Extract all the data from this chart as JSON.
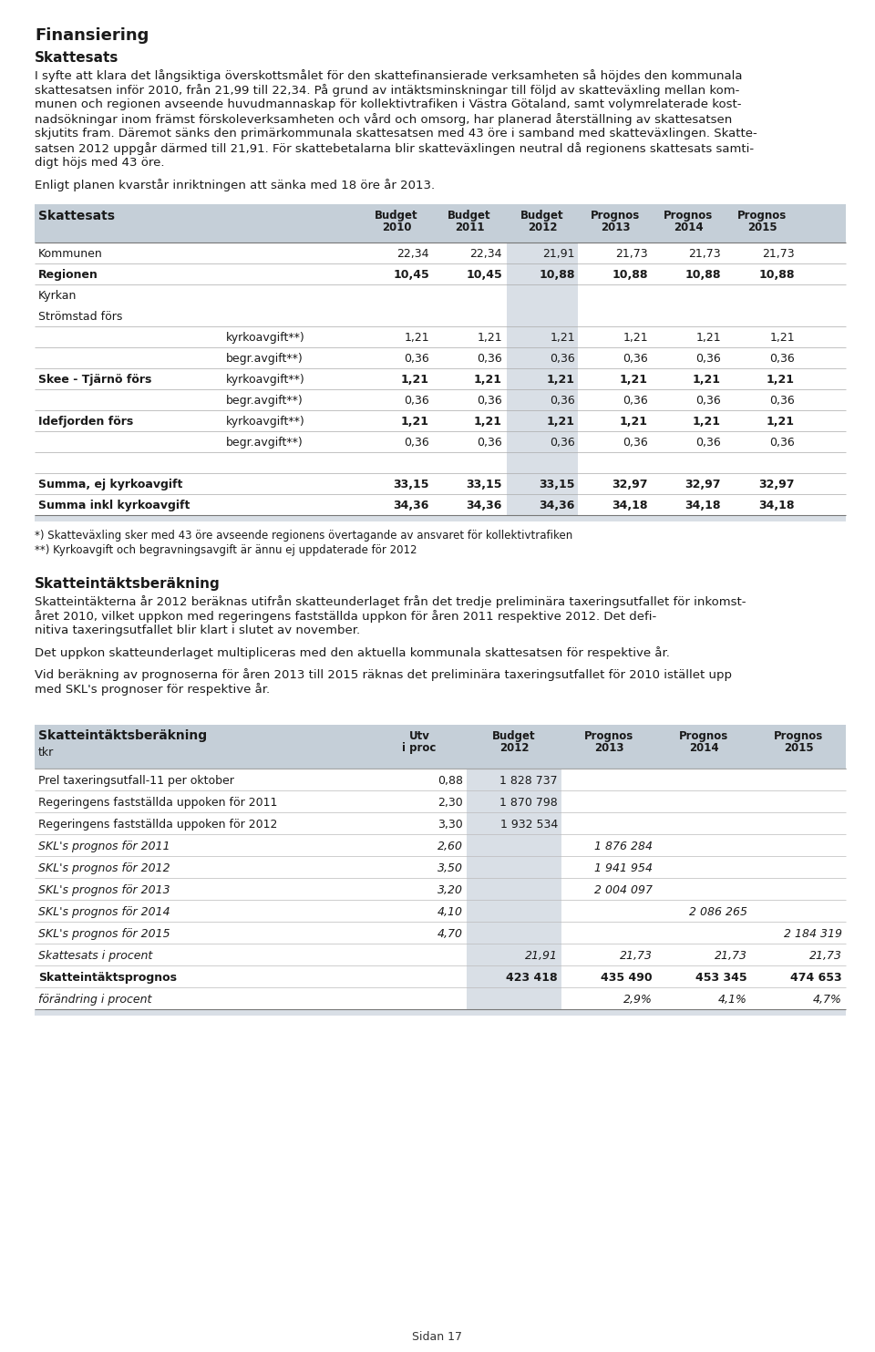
{
  "title1": "Finansiering",
  "section1_title": "Skattesats",
  "body1_lines": [
    "I syfte att klara det långsiktiga överskottsmålet för den skattefinansierade verksamheten så höjdes den kommunala",
    "skattesatsen inför 2010, från 21,99 till 22,34. På grund av intäktsminskningar till följd av skatteväxling mellan kom-",
    "munen och regionen avseende huvudmannaskap för kollektivtrafiken i Västra Götaland, samt volymrelaterade kost-",
    "nadsökningar inom främst förskoleverksamheten och vård och omsorg, har planerad återställning av skattesatsen",
    "skjutits fram. Däremot sänks den primärkommunala skattesatsen med 43 öre i samband med skatteväxlingen. Skatte-",
    "satsen 2012 uppgår därmed till 21,91. För skattebetalarna blir skatteväxlingen neutral då regionens skattesats samti-",
    "digt höjs med 43 öre."
  ],
  "body1_extra": "Enligt planen kvarstår inriktningen att sänka med 18 öre år 2013.",
  "table1_header_bg": "#c5cfd8",
  "table1_highlight_bg": "#d9dfe6",
  "table1_line_color": "#aaaaaa",
  "table1_title": "Skattesats",
  "table1_cols": [
    "Budget\n2010",
    "Budget\n2011",
    "Budget\n2012",
    "Prognos\n2013",
    "Prognos\n2014",
    "Prognos\n2015"
  ],
  "table1_rows": [
    {
      "label1": "Kommunen",
      "label2": "",
      "bold1": false,
      "bold2": false,
      "line": false,
      "values": [
        "22,34",
        "22,34",
        "21,91",
        "21,73",
        "21,73",
        "21,73"
      ],
      "bval": false
    },
    {
      "label1": "Regionen",
      "label2": "",
      "bold1": true,
      "bold2": false,
      "line": true,
      "values": [
        "10,45",
        "10,45",
        "10,88",
        "10,88",
        "10,88",
        "10,88"
      ],
      "bval": true
    },
    {
      "label1": "Kyrkan",
      "label2": "",
      "bold1": false,
      "bold2": false,
      "line": true,
      "values": [
        "",
        "",
        "",
        "",
        "",
        ""
      ],
      "bval": false
    },
    {
      "label1": "Strömstad förs",
      "label2": "",
      "bold1": false,
      "bold2": false,
      "line": false,
      "values": [
        "",
        "",
        "",
        "",
        "",
        ""
      ],
      "bval": false
    },
    {
      "label1": "",
      "label2": "kyrkoavgift**)",
      "bold1": false,
      "bold2": false,
      "line": true,
      "values": [
        "1,21",
        "1,21",
        "1,21",
        "1,21",
        "1,21",
        "1,21"
      ],
      "bval": false
    },
    {
      "label1": "",
      "label2": "begr.avgift**)",
      "bold1": false,
      "bold2": false,
      "line": true,
      "values": [
        "0,36",
        "0,36",
        "0,36",
        "0,36",
        "0,36",
        "0,36"
      ],
      "bval": false
    },
    {
      "label1": "Skee - Tjärnö förs",
      "label2": "kyrkoavgift**)",
      "bold1": true,
      "bold2": false,
      "line": true,
      "values": [
        "1,21",
        "1,21",
        "1,21",
        "1,21",
        "1,21",
        "1,21"
      ],
      "bval": true
    },
    {
      "label1": "",
      "label2": "begr.avgift**)",
      "bold1": false,
      "bold2": false,
      "line": true,
      "values": [
        "0,36",
        "0,36",
        "0,36",
        "0,36",
        "0,36",
        "0,36"
      ],
      "bval": false
    },
    {
      "label1": "Idefjorden förs",
      "label2": "kyrkoavgift**)",
      "bold1": true,
      "bold2": false,
      "line": true,
      "values": [
        "1,21",
        "1,21",
        "1,21",
        "1,21",
        "1,21",
        "1,21"
      ],
      "bval": true
    },
    {
      "label1": "",
      "label2": "begr.avgift**)",
      "bold1": false,
      "bold2": false,
      "line": true,
      "values": [
        "0,36",
        "0,36",
        "0,36",
        "0,36",
        "0,36",
        "0,36"
      ],
      "bval": false
    },
    {
      "label1": "",
      "label2": "",
      "bold1": false,
      "bold2": false,
      "line": true,
      "values": [
        "",
        "",
        "",
        "",
        "",
        ""
      ],
      "bval": false
    },
    {
      "label1": "Summa, ej kyrkoavgift",
      "label2": "",
      "bold1": true,
      "bold2": false,
      "line": true,
      "values": [
        "33,15",
        "33,15",
        "33,15",
        "32,97",
        "32,97",
        "32,97"
      ],
      "bval": true
    },
    {
      "label1": "Summa inkl kyrkoavgift",
      "label2": "",
      "bold1": true,
      "bold2": false,
      "line": true,
      "values": [
        "34,36",
        "34,36",
        "34,36",
        "34,18",
        "34,18",
        "34,18"
      ],
      "bval": true
    }
  ],
  "table1_footnote1": "*) Skatteväxling sker med 43 öre avseende regionens övertagande av ansvaret för kollektivtrafiken",
  "table1_footnote2": "**) Kyrkoavgift och begravningsavgift är ännu ej uppdaterade för 2012",
  "section2_title": "Skatteintäktsberäkning",
  "body2_lines": [
    "Skatteintäkterna år 2012 beräknas utifrån skatteunderlaget från det tredje preliminära taxeringsutfallet för inkomst-",
    "året 2010, vilket uppoken med regeringens fastställda uppoken för åren 2011 respektive 2012. Det defi-",
    "nitiva taxeringsutfallet blir klart i slutet av november."
  ],
  "body2_line2": "Det uppoken skatteunderlaget multipliceras med den aktuella kommunala skattesatsen för respektive år.",
  "body2_lines3": [
    "Vid beräkning av prognoserna för åren 2013 till 2015 räknas det preliminära taxeringsutfallet för 2010 istället upp",
    "med SKL's prognoser för respektive år."
  ],
  "table2_header_bg": "#c5cfd8",
  "table2_highlight_bg": "#d9dfe6",
  "table2_title1": "Skatteintäktsberäkning",
  "table2_title2": "tkr",
  "table2_cols": [
    "Utv\ni proc",
    "Budget\n2012",
    "Prognos\n2013",
    "Prognos\n2014",
    "Prognos\n2015"
  ],
  "table2_rows": [
    {
      "label": "Prel taxeringsutfall-11 per oktober",
      "values": [
        "0,88",
        "1 828 737",
        "",
        "",
        ""
      ],
      "italic": false,
      "bold": false
    },
    {
      "label": "Regeringens fastställda uppoken för 2011",
      "values": [
        "2,30",
        "1 870 798",
        "",
        "",
        ""
      ],
      "italic": false,
      "bold": false
    },
    {
      "label": "Regeringens fastställda uppoken för 2012",
      "values": [
        "3,30",
        "1 932 534",
        "",
        "",
        ""
      ],
      "italic": false,
      "bold": false
    },
    {
      "label": "SKL's prognos för 2011",
      "values": [
        "2,60",
        "",
        "1 876 284",
        "",
        ""
      ],
      "italic": true,
      "bold": false
    },
    {
      "label": "SKL's prognos för 2012",
      "values": [
        "3,50",
        "",
        "1 941 954",
        "",
        ""
      ],
      "italic": true,
      "bold": false
    },
    {
      "label": "SKL's prognos för 2013",
      "values": [
        "3,20",
        "",
        "2 004 097",
        "",
        ""
      ],
      "italic": true,
      "bold": false
    },
    {
      "label": "SKL's prognos för 2014",
      "values": [
        "4,10",
        "",
        "",
        "2 086 265",
        ""
      ],
      "italic": true,
      "bold": false
    },
    {
      "label": "SKL's prognos för 2015",
      "values": [
        "4,70",
        "",
        "",
        "",
        "2 184 319"
      ],
      "italic": true,
      "bold": false
    },
    {
      "label": "Skattesats i procent",
      "values": [
        "",
        "21,91",
        "21,73",
        "21,73",
        "21,73"
      ],
      "italic": true,
      "bold": false
    },
    {
      "label": "Skatteintäktsprognos",
      "values": [
        "",
        "423 418",
        "435 490",
        "453 345",
        "474 653"
      ],
      "italic": false,
      "bold": true
    },
    {
      "label": "förändring i procent",
      "values": [
        "",
        "",
        "2,9%",
        "4,1%",
        "4,7%"
      ],
      "italic": true,
      "bold": false
    }
  ],
  "footer": "Sidan 17",
  "lm": 38,
  "rm": 928,
  "body_fontsize": 9.5,
  "body_lh": 16.0,
  "table_fontsize": 9.0,
  "hdr_fontsize": 8.5
}
